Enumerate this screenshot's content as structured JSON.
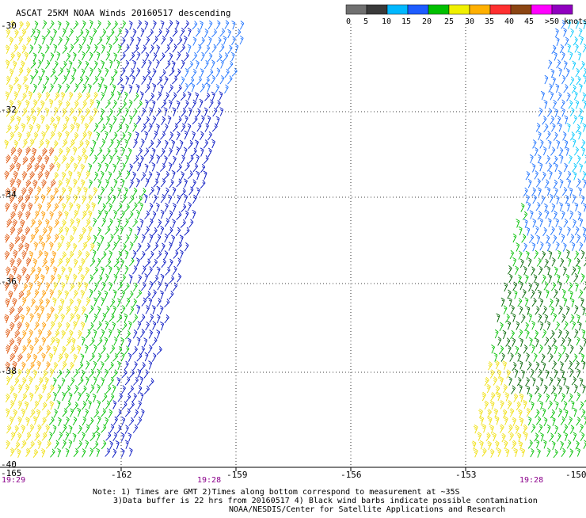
{
  "title": "ASCAT 25KM NOAA Winds 20160517 descending",
  "legend": {
    "stops": [
      "0",
      "5",
      "10",
      "15",
      "20",
      "25",
      "30",
      "35",
      "40",
      "45",
      ">50 knots"
    ],
    "colors": [
      "#707070",
      "#3a3a3a",
      "#00b8ff",
      "#1e5cff",
      "#00c000",
      "#f0f000",
      "#ffb000",
      "#ff3030",
      "#8b4513",
      "#ff00ff",
      "#9000c0"
    ]
  },
  "lat_labels": [
    "-30",
    "-32",
    "-34",
    "-36",
    "-38",
    "-40"
  ],
  "lon_labels": [
    "-165",
    "-162",
    "-159",
    "-156",
    "-153",
    "-150"
  ],
  "times": [
    "19:29",
    "19:28",
    "19:28"
  ],
  "notes": [
    "Note: 1) Times are GMT 2)Times along bottom correspond to measurement at ~35S",
    "3)Data buffer is 22 hrs from 20160517 4) Black wind barbs indicate possible contamination",
    "NOAA/NESDIS/Center for Satellite Applications and Research"
  ],
  "barb_colors": {
    "strong": "#e05a10",
    "orange": "#ff9a00",
    "yellow": "#f0e010",
    "green": "#00c000",
    "dkgreen": "#006400",
    "blue": "#0010c0",
    "ltblue": "#1a70ff",
    "cyan": "#00c8ff"
  }
}
